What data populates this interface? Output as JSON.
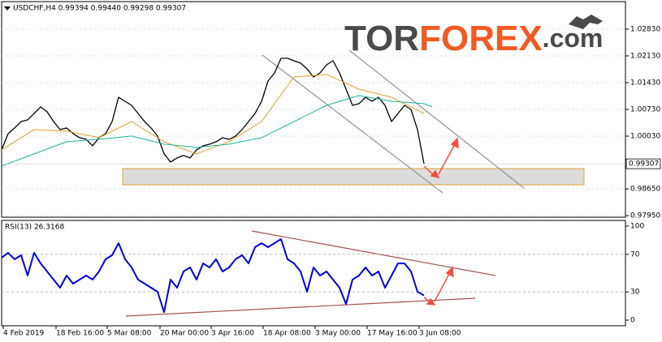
{
  "logo": {
    "tor": "TOR",
    "forex": "FOREX",
    "com": ".com"
  },
  "chart_data": [
    {
      "type": "line",
      "title": "USDCHF,H4  0.99394 0.99440 0.99298 0.99307",
      "current": 0.99307,
      "xlim": [
        0,
        768
      ],
      "ylim": [
        0.9791,
        1.0355
      ],
      "yticks": [
        {
          "value": 0.9795,
          "label": "0.97950"
        },
        {
          "value": 0.9865,
          "label": "0.98650"
        },
        {
          "value": 1.0003,
          "label": "1.00030"
        },
        {
          "value": 1.0073,
          "label": "1.00730"
        },
        {
          "value": 1.0143,
          "label": "1.01430"
        },
        {
          "value": 1.0213,
          "label": "1.02130"
        },
        {
          "value": 1.0283,
          "label": "1.02830"
        }
      ],
      "grid": true,
      "series": [
        {
          "color": "#000000",
          "width": 1.3,
          "x": [
            0,
            8,
            16,
            24,
            32,
            40,
            48,
            56,
            64,
            72,
            80,
            88,
            96,
            104,
            112,
            120,
            128,
            136,
            144,
            152,
            160,
            168,
            176,
            184,
            192,
            200,
            208,
            216,
            224,
            232,
            240,
            248,
            256,
            264,
            272,
            280,
            288,
            296,
            304,
            312,
            320,
            328,
            336,
            344,
            352,
            360,
            368,
            376,
            384,
            392,
            400,
            408,
            416,
            424,
            432,
            440,
            448,
            456,
            464,
            472,
            480,
            488,
            496,
            504,
            512,
            520
          ],
          "values": [
            0.99671,
            1.00095,
            1.00244,
            1.00413,
            1.00456,
            1.00625,
            1.00795,
            1.00668,
            1.00413,
            1.00201,
            1.00244,
            1.00095,
            0.99989,
            0.99947,
            0.99777,
            0.99989,
            1.00095,
            1.00413,
            1.01049,
            1.00943,
            1.00837,
            1.00625,
            1.00413,
            1.00244,
            1.00032,
            0.99565,
            0.99353,
            0.99459,
            0.99523,
            0.99459,
            0.99671,
            0.99777,
            0.9982,
            0.99883,
            0.99989,
            0.99947,
            1.00032,
            1.00201,
            1.00413,
            1.00625,
            1.00943,
            1.01473,
            1.01685,
            1.02067,
            1.02067,
            1.02003,
            1.0194,
            1.01791,
            1.01579,
            1.01685,
            1.01897,
            1.02003,
            1.01685,
            1.01261,
            1.00837,
            1.0088,
            1.01049,
            1.00943,
            1.01049,
            1.00837,
            1.00413,
            1.00625,
            1.00837,
            1.00731,
            1.00201,
            0.99307
          ]
        },
        {
          "color": "#e0a030",
          "width": 1,
          "x": [
            0,
            40,
            80,
            120,
            160,
            200,
            240,
            280,
            320,
            360,
            400,
            440,
            480,
            520
          ],
          "values": [
            0.99671,
            1.00201,
            1.00159,
            0.99989,
            1.00413,
            0.99883,
            0.99565,
            0.99883,
            1.00413,
            1.01579,
            1.01643,
            1.01261,
            1.01049,
            1.00625
          ]
        },
        {
          "color": "#20b0a0",
          "width": 1,
          "x": [
            0,
            40,
            80,
            120,
            160,
            200,
            240,
            280,
            320,
            360,
            400,
            440,
            480,
            520,
            530
          ],
          "values": [
            0.99247,
            0.99565,
            0.99883,
            0.99947,
            1.00032,
            0.9982,
            0.99735,
            0.9982,
            0.99989,
            1.00413,
            1.00837,
            1.01092,
            1.00943,
            1.0088,
            1.00795
          ]
        }
      ]
    },
    {
      "type": "line",
      "title": "RSI(13) 26.3168",
      "xlim": [
        0,
        768
      ],
      "ylim": [
        -6,
        106
      ],
      "yticks": [
        0,
        30,
        70,
        100
      ],
      "levels": [
        30,
        70
      ],
      "xticks": [
        {
          "value": 2,
          "label": "4 Feb 2019"
        },
        {
          "value": 67,
          "label": "18 Feb 16:00"
        },
        {
          "value": 130,
          "label": "5 Mar 08:00"
        },
        {
          "value": 195,
          "label": "20 Mar 00:00"
        },
        {
          "value": 258,
          "label": "3 Apr 16:00"
        },
        {
          "value": 322,
          "label": "18 Apr 08:00"
        },
        {
          "value": 386,
          "label": "3 May 00:00"
        },
        {
          "value": 450,
          "label": "17 May 16:00"
        },
        {
          "value": 514,
          "label": "3 Jun 08:00"
        }
      ],
      "series": [
        {
          "color": "#0000dd",
          "width": 2,
          "x": [
            0,
            8,
            16,
            24,
            32,
            40,
            48,
            56,
            64,
            72,
            80,
            88,
            96,
            104,
            112,
            120,
            128,
            136,
            144,
            152,
            160,
            168,
            176,
            184,
            192,
            200,
            208,
            216,
            224,
            232,
            240,
            248,
            256,
            264,
            272,
            280,
            288,
            296,
            304,
            312,
            320,
            328,
            336,
            344,
            352,
            360,
            368,
            376,
            384,
            392,
            400,
            408,
            416,
            424,
            432,
            440,
            448,
            456,
            464,
            472,
            480,
            488,
            496,
            504,
            512,
            520
          ],
          "values": [
            66.4,
            71.6,
            64.7,
            69.0,
            47.4,
            71.6,
            60.3,
            51.7,
            43.1,
            34.5,
            47.4,
            38.8,
            43.1,
            47.4,
            43.1,
            51.7,
            64.7,
            69.0,
            81.9,
            64.7,
            56.0,
            43.1,
            38.8,
            34.5,
            30.2,
            8.6,
            43.1,
            34.5,
            51.7,
            56.0,
            43.1,
            60.3,
            56.0,
            64.7,
            51.7,
            56.0,
            64.7,
            69.0,
            60.3,
            77.6,
            81.9,
            77.6,
            81.9,
            86.2,
            64.7,
            60.3,
            51.7,
            30.2,
            56.0,
            47.4,
            51.7,
            43.1,
            34.5,
            17.2,
            43.1,
            47.4,
            56.0,
            47.4,
            51.7,
            34.5,
            47.4,
            60.3,
            60.3,
            51.7,
            30.2,
            26.3
          ]
        }
      ]
    }
  ]
}
